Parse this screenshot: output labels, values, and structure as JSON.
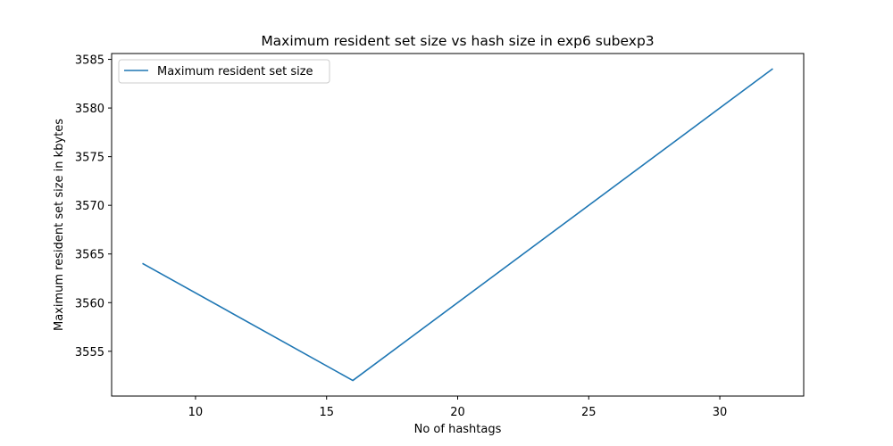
{
  "chart_data": {
    "type": "line",
    "title": "Maximum resident set size vs hash size in exp6 subexp3",
    "xlabel": "No of hashtags",
    "ylabel": "Maximum resident set size in kbytes",
    "x_ticks": [
      10,
      15,
      20,
      25,
      30
    ],
    "y_ticks": [
      3555,
      3560,
      3565,
      3570,
      3575,
      3580,
      3585
    ],
    "xlim": [
      6.8,
      33.2
    ],
    "ylim": [
      3550.4,
      3585.6
    ],
    "grid": false,
    "legend_position": "top-left",
    "series": [
      {
        "name": "Maximum resident set size",
        "color": "#1f77b4",
        "x": [
          8,
          16,
          32
        ],
        "y": [
          3564,
          3552,
          3584
        ]
      }
    ]
  }
}
